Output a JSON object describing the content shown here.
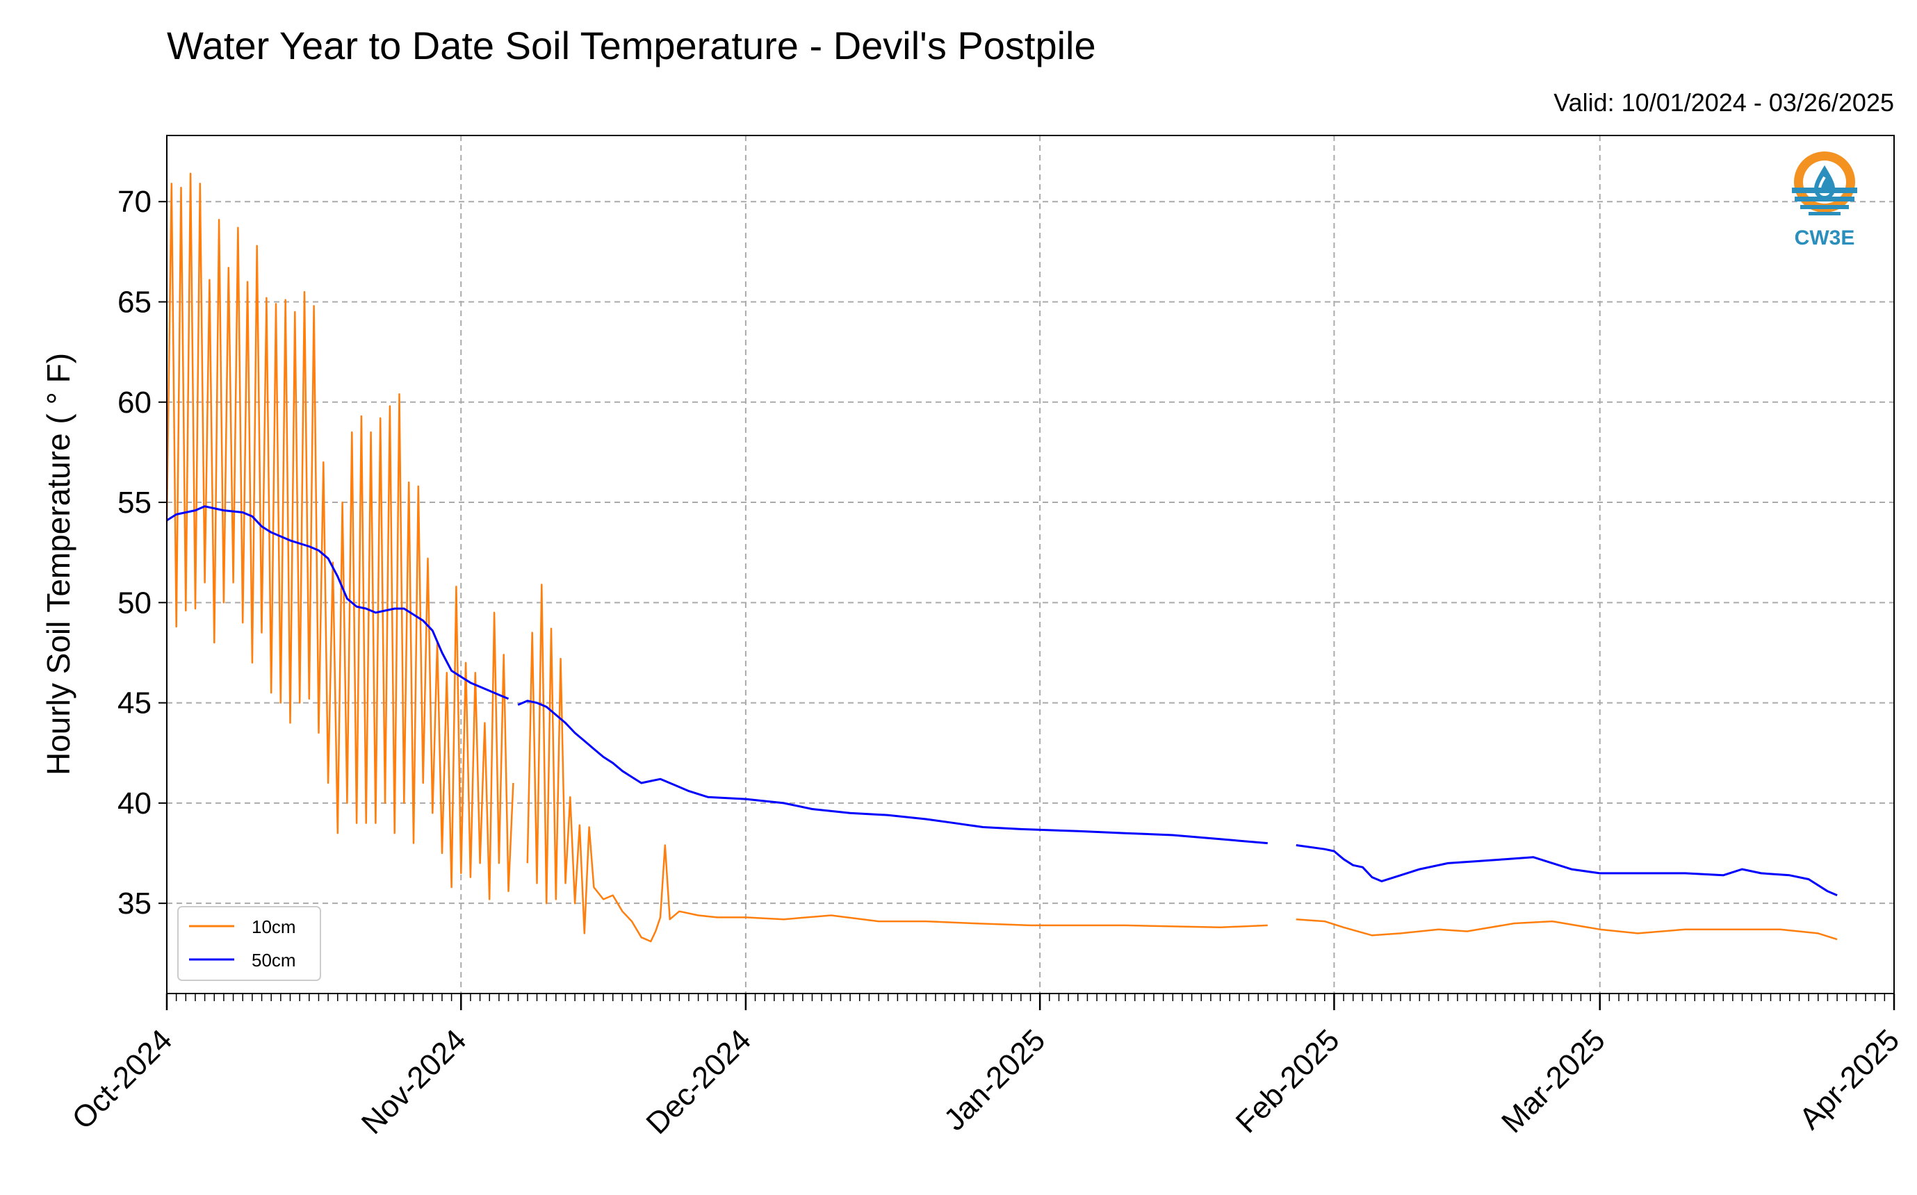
{
  "header": {
    "title": "Water Year to Date Soil Temperature - Devil's Postpile",
    "valid_range": "Valid: 10/01/2024 - 03/26/2025"
  },
  "logo": {
    "text": "CW3E",
    "icon": "cw3e-water-drop-logo",
    "ring_color": "#f39220",
    "wave_color": "#2a8fbd"
  },
  "chart_data": {
    "type": "line",
    "title": "Water Year to Date Soil Temperature - Devil's Postpile",
    "subtitle": "Valid: 10/01/2024 - 03/26/2025",
    "xlabel": "",
    "ylabel": "Hourly Soil Temperature ( ° F)",
    "xlim": [
      "2024-10-01",
      "2025-04-01"
    ],
    "ylim": [
      30.5,
      73.3
    ],
    "x_ticks": [
      "2024-10-01",
      "2024-11-01",
      "2024-12-01",
      "2025-01-01",
      "2025-02-01",
      "2025-03-01",
      "2025-04-01"
    ],
    "x_tick_labels": [
      "Oct-2024",
      "Nov-2024",
      "Dec-2024",
      "Jan-2025",
      "Feb-2025",
      "Mar-2025",
      "Apr-2025"
    ],
    "y_ticks": [
      35,
      40,
      45,
      50,
      55,
      60,
      65,
      70
    ],
    "grid": true,
    "legend": "lower-left",
    "series": [
      {
        "name": "10cm",
        "color": "#ff7f0e",
        "segments": [
          [
            [
              "2024-10-01",
              54
            ],
            [
              "2024-10-01T12:00",
              70.9
            ],
            [
              "2024-10-02",
              48.8
            ],
            [
              "2024-10-02T12:00",
              70.7
            ],
            [
              "2024-10-03",
              49.6
            ],
            [
              "2024-10-03T12:00",
              71.4
            ],
            [
              "2024-10-04",
              49.7
            ],
            [
              "2024-10-04T12:00",
              70.9
            ],
            [
              "2024-10-05",
              51
            ],
            [
              "2024-10-05T12:00",
              66.1
            ],
            [
              "2024-10-06",
              48
            ],
            [
              "2024-10-06T12:00",
              69.1
            ],
            [
              "2024-10-07",
              50
            ],
            [
              "2024-10-07T12:00",
              66.7
            ],
            [
              "2024-10-08",
              51
            ],
            [
              "2024-10-08T12:00",
              68.7
            ],
            [
              "2024-10-09",
              49
            ],
            [
              "2024-10-09T12:00",
              66
            ],
            [
              "2024-10-10",
              47
            ],
            [
              "2024-10-10T12:00",
              67.8
            ],
            [
              "2024-10-11",
              48.5
            ],
            [
              "2024-10-11T12:00",
              65.2
            ],
            [
              "2024-10-12",
              45.5
            ],
            [
              "2024-10-12T12:00",
              64.9
            ],
            [
              "2024-10-13",
              45
            ],
            [
              "2024-10-13T12:00",
              65.1
            ],
            [
              "2024-10-14",
              44
            ],
            [
              "2024-10-14T12:00",
              64.5
            ],
            [
              "2024-10-15",
              45
            ],
            [
              "2024-10-15T12:00",
              65.5
            ],
            [
              "2024-10-16",
              45.2
            ],
            [
              "2024-10-16T12:00",
              64.8
            ],
            [
              "2024-10-17",
              43.5
            ],
            [
              "2024-10-17T12:00",
              57
            ],
            [
              "2024-10-18",
              41
            ],
            [
              "2024-10-18T12:00",
              52
            ],
            [
              "2024-10-19",
              38.5
            ],
            [
              "2024-10-19T12:00",
              55
            ],
            [
              "2024-10-20",
              40
            ],
            [
              "2024-10-20T12:00",
              58.5
            ],
            [
              "2024-10-21",
              39
            ],
            [
              "2024-10-21T12:00",
              59.3
            ],
            [
              "2024-10-22",
              39
            ],
            [
              "2024-10-22T12:00",
              58.5
            ],
            [
              "2024-10-23",
              39
            ],
            [
              "2024-10-23T12:00",
              59.2
            ],
            [
              "2024-10-24",
              40
            ],
            [
              "2024-10-24T12:00",
              59.8
            ],
            [
              "2024-10-25",
              38.5
            ],
            [
              "2024-10-25T12:00",
              60.4
            ],
            [
              "2024-10-26",
              40
            ],
            [
              "2024-10-26T12:00",
              56
            ],
            [
              "2024-10-27",
              38
            ],
            [
              "2024-10-27T12:00",
              55.8
            ],
            [
              "2024-10-28",
              41
            ],
            [
              "2024-10-28T12:00",
              52.2
            ],
            [
              "2024-10-29",
              39.5
            ],
            [
              "2024-10-29T12:00",
              48
            ],
            [
              "2024-10-30",
              37.5
            ],
            [
              "2024-10-30T12:00",
              46.5
            ],
            [
              "2024-10-31",
              35.8
            ],
            [
              "2024-10-31T12:00",
              50.8
            ],
            [
              "2024-11-01",
              36.5
            ],
            [
              "2024-11-01T12:00",
              47
            ],
            [
              "2024-11-02",
              36.3
            ],
            [
              "2024-11-02T12:00",
              46.5
            ],
            [
              "2024-11-03",
              37
            ],
            [
              "2024-11-03T12:00",
              44
            ],
            [
              "2024-11-04",
              35.2
            ],
            [
              "2024-11-04T12:00",
              49.5
            ],
            [
              "2024-11-05",
              37
            ],
            [
              "2024-11-05T12:00",
              47.4
            ],
            [
              "2024-11-06",
              35.6
            ],
            [
              "2024-11-06T12:00",
              41
            ]
          ],
          [
            [
              "2024-11-08",
              37
            ],
            [
              "2024-11-08T12:00",
              48.5
            ],
            [
              "2024-11-09",
              36
            ],
            [
              "2024-11-09T12:00",
              50.9
            ],
            [
              "2024-11-10",
              35
            ],
            [
              "2024-11-10T12:00",
              48.7
            ],
            [
              "2024-11-11",
              35.2
            ],
            [
              "2024-11-11T12:00",
              47.2
            ],
            [
              "2024-11-12",
              36
            ],
            [
              "2024-11-12T12:00",
              40.3
            ],
            [
              "2024-11-13",
              35
            ],
            [
              "2024-11-13T12:00",
              38.9
            ],
            [
              "2024-11-14",
              33.5
            ],
            [
              "2024-11-14T12:00",
              38.8
            ],
            [
              "2024-11-15",
              35.8
            ],
            [
              "2024-11-16",
              35.2
            ],
            [
              "2024-11-17",
              35.4
            ],
            [
              "2024-11-18",
              34.6
            ],
            [
              "2024-11-19",
              34.1
            ],
            [
              "2024-11-20",
              33.3
            ],
            [
              "2024-11-21",
              33.1
            ],
            [
              "2024-11-21T12:00",
              33.6
            ],
            [
              "2024-11-22",
              34.3
            ],
            [
              "2024-11-22T12:00",
              37.9
            ],
            [
              "2024-11-23",
              34.2
            ],
            [
              "2024-11-24",
              34.6
            ],
            [
              "2024-11-26",
              34.4
            ],
            [
              "2024-11-28",
              34.3
            ],
            [
              "2024-12-01",
              34.3
            ],
            [
              "2024-12-05",
              34.2
            ],
            [
              "2024-12-10",
              34.4
            ],
            [
              "2024-12-15",
              34.1
            ],
            [
              "2024-12-20",
              34.1
            ],
            [
              "2024-12-25",
              34
            ],
            [
              "2024-12-31",
              33.9
            ],
            [
              "2025-01-10",
              33.9
            ],
            [
              "2025-01-20",
              33.8
            ],
            [
              "2025-01-25",
              33.9
            ]
          ],
          [
            [
              "2025-01-28",
              34.2
            ],
            [
              "2025-01-31",
              34.1
            ],
            [
              "2025-02-02",
              33.8
            ],
            [
              "2025-02-05",
              33.4
            ],
            [
              "2025-02-08",
              33.5
            ],
            [
              "2025-02-12",
              33.7
            ],
            [
              "2025-02-15",
              33.6
            ],
            [
              "2025-02-20",
              34
            ],
            [
              "2025-02-24",
              34.1
            ],
            [
              "2025-03-01",
              33.7
            ],
            [
              "2025-03-05",
              33.5
            ],
            [
              "2025-03-10",
              33.7
            ],
            [
              "2025-03-15",
              33.7
            ],
            [
              "2025-03-20",
              33.7
            ],
            [
              "2025-03-24",
              33.5
            ],
            [
              "2025-03-26",
              33.2
            ]
          ]
        ]
      },
      {
        "name": "50cm",
        "color": "#0000ff",
        "segments": [
          [
            [
              "2024-10-01",
              54.1
            ],
            [
              "2024-10-02",
              54.4
            ],
            [
              "2024-10-04",
              54.6
            ],
            [
              "2024-10-05",
              54.8
            ],
            [
              "2024-10-07",
              54.6
            ],
            [
              "2024-10-09",
              54.5
            ],
            [
              "2024-10-10",
              54.3
            ],
            [
              "2024-10-11",
              53.8
            ],
            [
              "2024-10-12",
              53.5
            ],
            [
              "2024-10-14",
              53.1
            ],
            [
              "2024-10-16",
              52.8
            ],
            [
              "2024-10-17",
              52.6
            ],
            [
              "2024-10-18",
              52.2
            ],
            [
              "2024-10-19",
              51.3
            ],
            [
              "2024-10-20",
              50.2
            ],
            [
              "2024-10-21",
              49.8
            ],
            [
              "2024-10-22",
              49.7
            ],
            [
              "2024-10-23",
              49.5
            ],
            [
              "2024-10-24",
              49.6
            ],
            [
              "2024-10-25",
              49.7
            ],
            [
              "2024-10-26",
              49.7
            ],
            [
              "2024-10-27",
              49.4
            ],
            [
              "2024-10-28",
              49.1
            ],
            [
              "2024-10-29",
              48.6
            ],
            [
              "2024-10-30",
              47.5
            ],
            [
              "2024-10-31",
              46.6
            ],
            [
              "2024-11-01",
              46.3
            ],
            [
              "2024-11-02",
              46
            ],
            [
              "2024-11-03",
              45.8
            ],
            [
              "2024-11-04",
              45.6
            ],
            [
              "2024-11-05",
              45.4
            ],
            [
              "2024-11-06",
              45.2
            ]
          ],
          [
            [
              "2024-11-07",
              44.9
            ],
            [
              "2024-11-08",
              45.1
            ],
            [
              "2024-11-09",
              45
            ],
            [
              "2024-11-10",
              44.8
            ],
            [
              "2024-11-11",
              44.4
            ],
            [
              "2024-11-12",
              44
            ],
            [
              "2024-11-13",
              43.5
            ],
            [
              "2024-11-14",
              43.1
            ],
            [
              "2024-11-15",
              42.7
            ],
            [
              "2024-11-16",
              42.3
            ],
            [
              "2024-11-17",
              42
            ],
            [
              "2024-11-18",
              41.6
            ],
            [
              "2024-11-19",
              41.3
            ],
            [
              "2024-11-20",
              41
            ],
            [
              "2024-11-21",
              41.1
            ],
            [
              "2024-11-22",
              41.2
            ],
            [
              "2024-11-23",
              41
            ],
            [
              "2024-11-24",
              40.8
            ],
            [
              "2024-11-25",
              40.6
            ],
            [
              "2024-11-27",
              40.3
            ],
            [
              "2024-12-01",
              40.2
            ],
            [
              "2024-12-05",
              40
            ],
            [
              "2024-12-08",
              39.7
            ],
            [
              "2024-12-12",
              39.5
            ],
            [
              "2024-12-16",
              39.4
            ],
            [
              "2024-12-20",
              39.2
            ],
            [
              "2024-12-23",
              39
            ],
            [
              "2024-12-26",
              38.8
            ],
            [
              "2024-12-30",
              38.7
            ],
            [
              "2025-01-05",
              38.6
            ],
            [
              "2025-01-10",
              38.5
            ],
            [
              "2025-01-15",
              38.4
            ],
            [
              "2025-01-20",
              38.2
            ],
            [
              "2025-01-25",
              38
            ]
          ],
          [
            [
              "2025-01-28",
              37.9
            ],
            [
              "2025-01-31",
              37.7
            ],
            [
              "2025-02-01",
              37.6
            ],
            [
              "2025-02-02",
              37.2
            ],
            [
              "2025-02-03",
              36.9
            ],
            [
              "2025-02-04",
              36.8
            ],
            [
              "2025-02-05",
              36.3
            ],
            [
              "2025-02-06",
              36.1
            ],
            [
              "2025-02-08",
              36.4
            ],
            [
              "2025-02-10",
              36.7
            ],
            [
              "2025-02-13",
              37
            ],
            [
              "2025-02-16",
              37.1
            ],
            [
              "2025-02-19",
              37.2
            ],
            [
              "2025-02-22",
              37.3
            ],
            [
              "2025-02-24",
              37
            ],
            [
              "2025-02-26",
              36.7
            ],
            [
              "2025-03-01",
              36.5
            ],
            [
              "2025-03-05",
              36.5
            ],
            [
              "2025-03-10",
              36.5
            ],
            [
              "2025-03-14",
              36.4
            ],
            [
              "2025-03-16",
              36.7
            ],
            [
              "2025-03-18",
              36.5
            ],
            [
              "2025-03-21",
              36.4
            ],
            [
              "2025-03-23",
              36.2
            ],
            [
              "2025-03-25",
              35.6
            ],
            [
              "2025-03-26",
              35.4
            ]
          ]
        ]
      }
    ]
  }
}
